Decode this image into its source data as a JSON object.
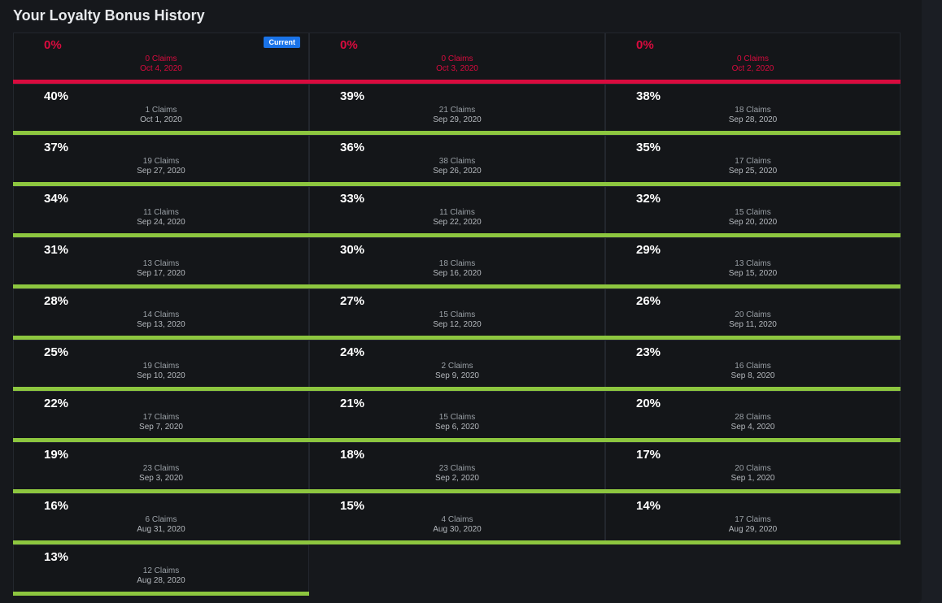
{
  "title": "Your Loyalty Bonus History",
  "current_badge": "Current",
  "colors": {
    "active": "#8dc63f",
    "zero": "#d90b3e",
    "badge": "#1a73e8"
  },
  "entries": [
    {
      "percent": "0%",
      "claims": "0 Claims",
      "date": "Oct 4, 2020",
      "current": true
    },
    {
      "percent": "0%",
      "claims": "0 Claims",
      "date": "Oct 3, 2020"
    },
    {
      "percent": "0%",
      "claims": "0 Claims",
      "date": "Oct 2, 2020"
    },
    {
      "percent": "40%",
      "claims": "1 Claims",
      "date": "Oct 1, 2020"
    },
    {
      "percent": "39%",
      "claims": "21 Claims",
      "date": "Sep 29, 2020"
    },
    {
      "percent": "38%",
      "claims": "18 Claims",
      "date": "Sep 28, 2020"
    },
    {
      "percent": "37%",
      "claims": "19 Claims",
      "date": "Sep 27, 2020"
    },
    {
      "percent": "36%",
      "claims": "38 Claims",
      "date": "Sep 26, 2020"
    },
    {
      "percent": "35%",
      "claims": "17 Claims",
      "date": "Sep 25, 2020"
    },
    {
      "percent": "34%",
      "claims": "11 Claims",
      "date": "Sep 24, 2020"
    },
    {
      "percent": "33%",
      "claims": "11 Claims",
      "date": "Sep 22, 2020"
    },
    {
      "percent": "32%",
      "claims": "15 Claims",
      "date": "Sep 20, 2020"
    },
    {
      "percent": "31%",
      "claims": "13 Claims",
      "date": "Sep 17, 2020"
    },
    {
      "percent": "30%",
      "claims": "18 Claims",
      "date": "Sep 16, 2020"
    },
    {
      "percent": "29%",
      "claims": "13 Claims",
      "date": "Sep 15, 2020"
    },
    {
      "percent": "28%",
      "claims": "14 Claims",
      "date": "Sep 13, 2020"
    },
    {
      "percent": "27%",
      "claims": "15 Claims",
      "date": "Sep 12, 2020"
    },
    {
      "percent": "26%",
      "claims": "20 Claims",
      "date": "Sep 11, 2020"
    },
    {
      "percent": "25%",
      "claims": "19 Claims",
      "date": "Sep 10, 2020"
    },
    {
      "percent": "24%",
      "claims": "2 Claims",
      "date": "Sep 9, 2020"
    },
    {
      "percent": "23%",
      "claims": "16 Claims",
      "date": "Sep 8, 2020"
    },
    {
      "percent": "22%",
      "claims": "17 Claims",
      "date": "Sep 7, 2020"
    },
    {
      "percent": "21%",
      "claims": "15 Claims",
      "date": "Sep 6, 2020"
    },
    {
      "percent": "20%",
      "claims": "28 Claims",
      "date": "Sep 4, 2020"
    },
    {
      "percent": "19%",
      "claims": "23 Claims",
      "date": "Sep 3, 2020"
    },
    {
      "percent": "18%",
      "claims": "23 Claims",
      "date": "Sep 2, 2020"
    },
    {
      "percent": "17%",
      "claims": "20 Claims",
      "date": "Sep 1, 2020"
    },
    {
      "percent": "16%",
      "claims": "6 Claims",
      "date": "Aug 31, 2020"
    },
    {
      "percent": "15%",
      "claims": "4 Claims",
      "date": "Aug 30, 2020"
    },
    {
      "percent": "14%",
      "claims": "17 Claims",
      "date": "Aug 29, 2020"
    },
    {
      "percent": "13%",
      "claims": "12 Claims",
      "date": "Aug 28, 2020"
    }
  ]
}
